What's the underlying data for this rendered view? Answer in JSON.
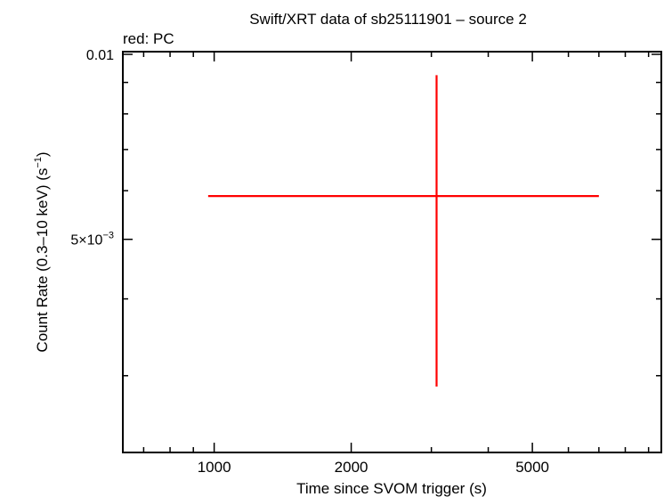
{
  "chart_data": {
    "type": "scatter",
    "title": "Swift/XRT data of sb25111901 – source 2",
    "subtitle": "red: PC",
    "xlabel": "Time since SVOM trigger (s)",
    "ylabel_main": "Count Rate (0.3–10 keV) (s",
    "ylabel_sup": "−1",
    "ylabel_end": ")",
    "x_scale": "log",
    "y_scale": "log",
    "xlim": [
      630,
      9600
    ],
    "ylim": [
      0.00225,
      0.0101
    ],
    "x_ticks": [
      {
        "value": 1000,
        "label": "1000"
      },
      {
        "value": 2000,
        "label": "2000"
      },
      {
        "value": 5000,
        "label": "5000"
      }
    ],
    "y_ticks": [
      {
        "value": 0.01,
        "label": "0.01",
        "base": "",
        "exp": ""
      },
      {
        "value": 0.005,
        "label": "",
        "base": "5×10",
        "exp": "−3"
      }
    ],
    "series": [
      {
        "name": "PC",
        "color": "#ff0000",
        "points": [
          {
            "x": 3080,
            "x_low": 970,
            "x_high": 7000,
            "y": 0.00588,
            "y_low": 0.00288,
            "y_high": 0.00925
          }
        ]
      }
    ],
    "grid": false,
    "legend": "none"
  }
}
